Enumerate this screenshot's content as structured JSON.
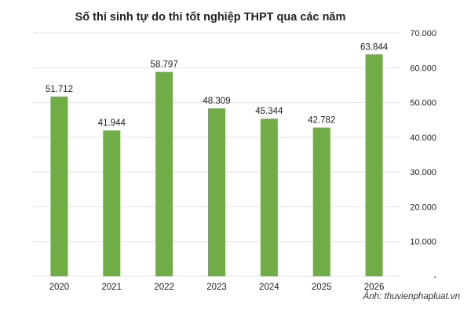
{
  "chart_data": {
    "type": "bar",
    "title": "Số thí sinh tự do thi tốt nghiệp THPT qua các năm",
    "xlabel": "",
    "ylabel": "",
    "categories": [
      "2020",
      "2021",
      "2022",
      "2023",
      "2024",
      "2025",
      "2026"
    ],
    "values": [
      51712,
      41944,
      58797,
      48309,
      45344,
      42782,
      63844
    ],
    "value_labels": [
      "51.712",
      "41.944",
      "58.797",
      "48.309",
      "45.344",
      "42.782",
      "63.844"
    ],
    "ylim": [
      0,
      70000
    ],
    "yticks": [
      0,
      10000,
      20000,
      30000,
      40000,
      50000,
      60000,
      70000
    ],
    "ytick_labels": [
      "-",
      "10.000",
      "20.000",
      "30.000",
      "40.000",
      "50.000",
      "60.000",
      "70.000"
    ],
    "y_axis_side": "right",
    "grid": true,
    "legend": false,
    "bar_color": "#70AD47",
    "grid_color": "#E3E3E3"
  },
  "credit": "Ảnh: thuvienphapluat.vn"
}
